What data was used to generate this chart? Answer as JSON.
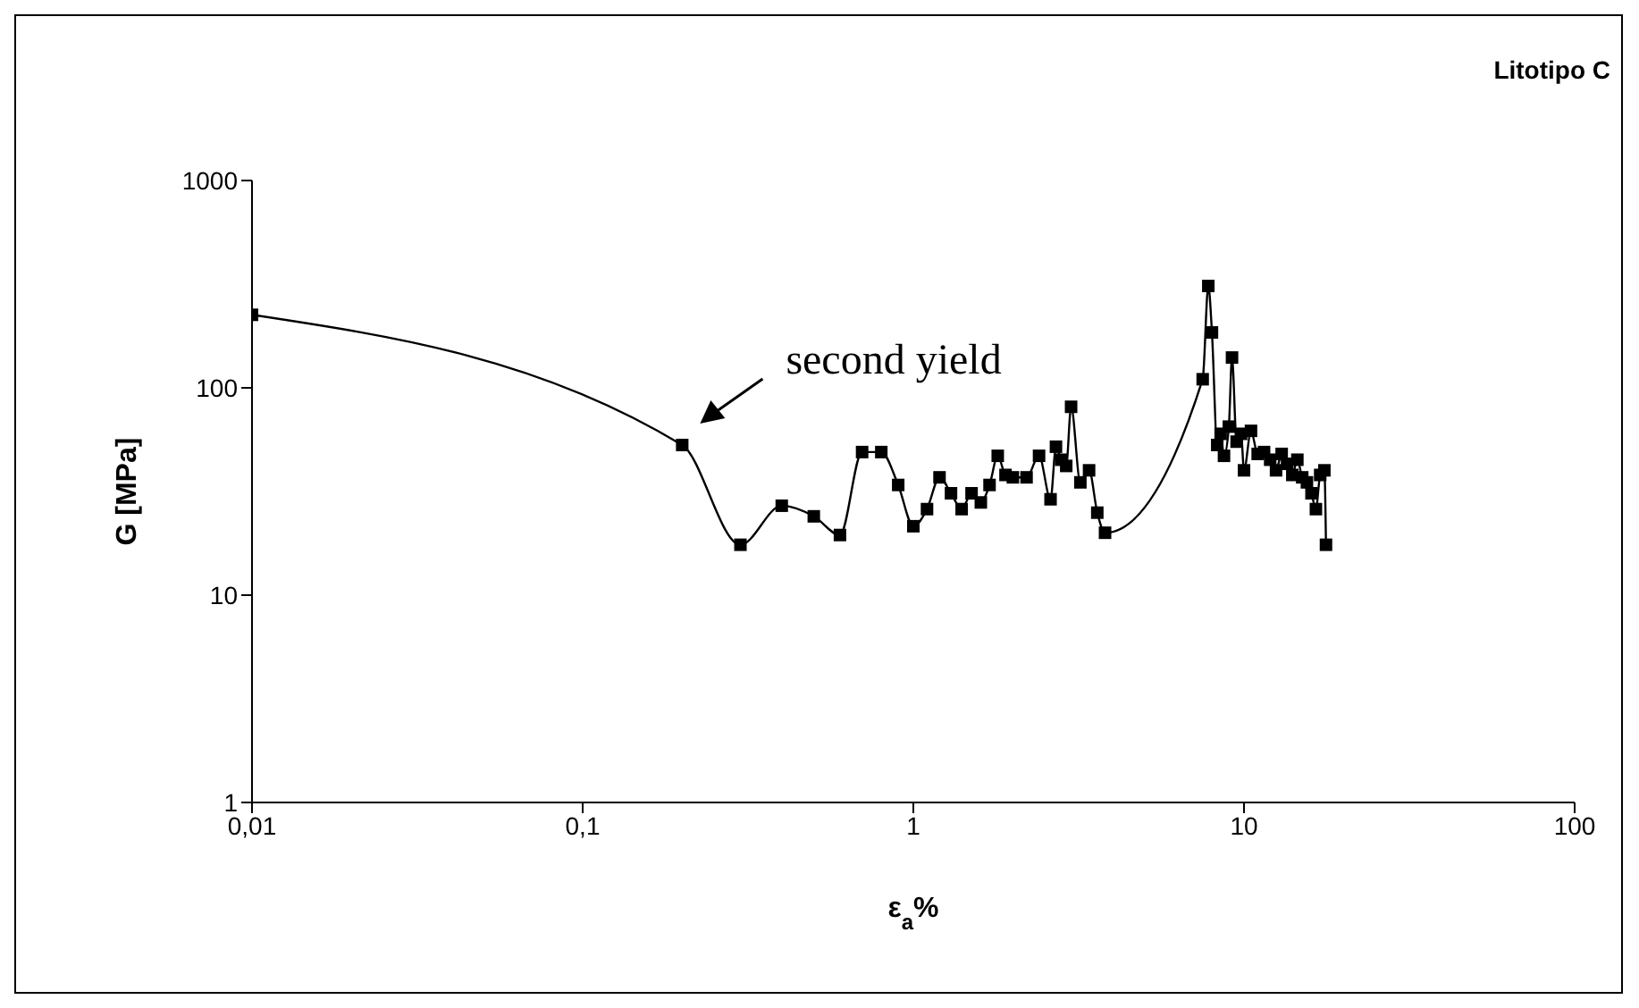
{
  "chart_data": {
    "type": "line",
    "title": "Litotipo C",
    "xlabel": "ε$_{a}$%",
    "ylabel": "G [MPa]",
    "log": "xy",
    "grid": false,
    "legend": false,
    "marker": "square",
    "line_style": "solid",
    "xlim": [
      0.01,
      100
    ],
    "xticks": [
      {
        "value": 0.01,
        "label": "0,01"
      },
      {
        "value": 0.1,
        "label": "0,1"
      },
      1,
      10,
      100
    ],
    "ylim": [
      1,
      1000
    ],
    "yticks": [
      1,
      10,
      100,
      1000
    ],
    "annotations": [
      {
        "text": "second yield",
        "x": 0.2,
        "y": 53
      }
    ],
    "x": [
      0.01,
      0.2,
      0.3,
      0.4,
      0.5,
      0.6,
      0.7,
      0.8,
      0.9,
      1.0,
      1.1,
      1.2,
      1.3,
      1.4,
      1.5,
      1.6,
      1.7,
      1.8,
      1.9,
      2.0,
      2.2,
      2.4,
      2.6,
      2.7,
      2.8,
      2.9,
      3.0,
      3.2,
      3.4,
      3.6,
      3.8,
      7.5,
      7.8,
      8.0,
      8.3,
      8.5,
      8.7,
      9.0,
      9.2,
      9.5,
      9.8,
      10,
      10.5,
      11,
      11.5,
      12,
      12.5,
      13,
      13.5,
      14,
      14.5,
      15,
      15.5,
      16,
      16.5,
      17,
      17.5,
      17.7
    ],
    "series": [
      {
        "color": "#000000",
        "values": [
          225,
          53,
          17.5,
          27,
          24,
          19.5,
          49,
          49,
          34,
          21.5,
          26,
          37,
          31,
          26,
          31,
          28,
          34,
          47,
          38,
          37,
          37,
          47,
          29,
          52,
          45,
          42,
          81,
          35,
          40,
          25,
          20,
          110,
          310,
          185,
          53,
          60,
          47,
          65,
          140,
          55,
          60,
          40,
          62,
          48,
          49,
          45,
          40,
          48,
          43,
          38,
          45,
          37,
          35,
          31,
          26,
          38,
          40,
          17.5
        ]
      }
    ]
  }
}
